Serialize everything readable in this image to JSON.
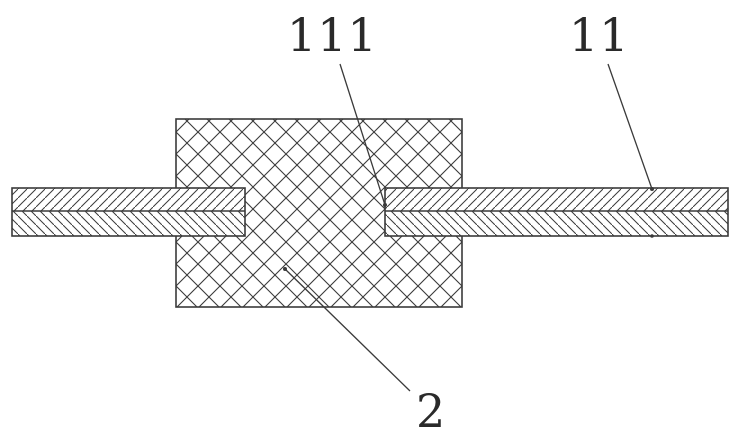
{
  "figure": {
    "labels": {
      "label_111": "111",
      "label_11": "11",
      "label_2": "2"
    },
    "colors": {
      "line": "#3a3a3a",
      "background": "#ffffff",
      "text": "#2a2a2a"
    }
  }
}
